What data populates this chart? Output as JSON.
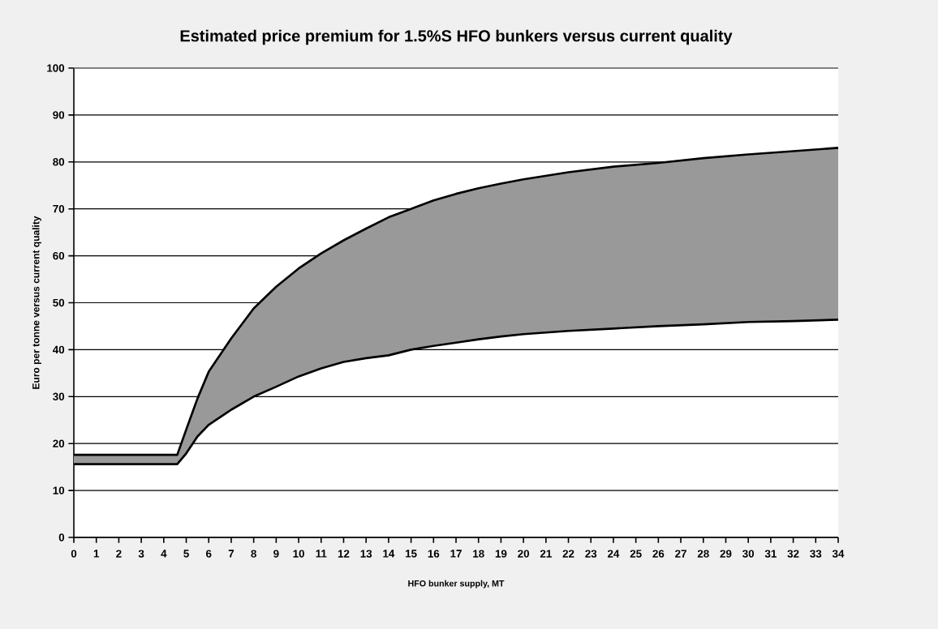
{
  "chart_data": {
    "type": "area",
    "title": "Estimated price premium for 1.5%S HFO bunkers versus current quality",
    "xlabel": "HFO bunker supply, MT",
    "ylabel": "Euro per tonne versus current quality",
    "x": [
      0,
      4.6,
      5,
      5.5,
      6,
      7,
      8,
      9,
      10,
      11,
      12,
      13,
      14,
      15,
      16,
      17,
      18,
      19,
      20,
      22,
      24,
      26,
      28,
      30,
      32,
      34
    ],
    "series": [
      {
        "color": "#999999",
        "values": [
          17.6,
          17.6,
          23,
          29.6,
          35.3,
          42.4,
          48.8,
          53.4,
          57.3,
          60.5,
          63.3,
          65.8,
          68.2,
          70,
          71.8,
          73.2,
          74.4,
          75.4,
          76.3,
          77.8,
          79,
          79.8,
          80.8,
          81.6,
          82.3,
          83
        ]
      },
      {
        "type": "line",
        "color": "#000000",
        "values": [
          15.6,
          15.6,
          17.9,
          21.5,
          24,
          27.2,
          30,
          32.1,
          34.3,
          36,
          37.4,
          38.2,
          38.8,
          40,
          40.8,
          41.5,
          42.2,
          42.8,
          43.3,
          44,
          44.5,
          45,
          45.4,
          45.9,
          46.1,
          46.4
        ]
      }
    ],
    "xlim": [
      0,
      34
    ],
    "ylim": [
      0,
      100
    ],
    "xticks": [
      0,
      1,
      2,
      3,
      4,
      5,
      6,
      7,
      8,
      9,
      10,
      11,
      12,
      13,
      14,
      15,
      16,
      17,
      18,
      19,
      20,
      21,
      22,
      23,
      24,
      25,
      26,
      27,
      28,
      29,
      30,
      31,
      32,
      33,
      34
    ],
    "yticks": [
      0,
      10,
      20,
      30,
      40,
      50,
      60,
      70,
      80,
      90,
      100
    ],
    "grid": "y"
  }
}
